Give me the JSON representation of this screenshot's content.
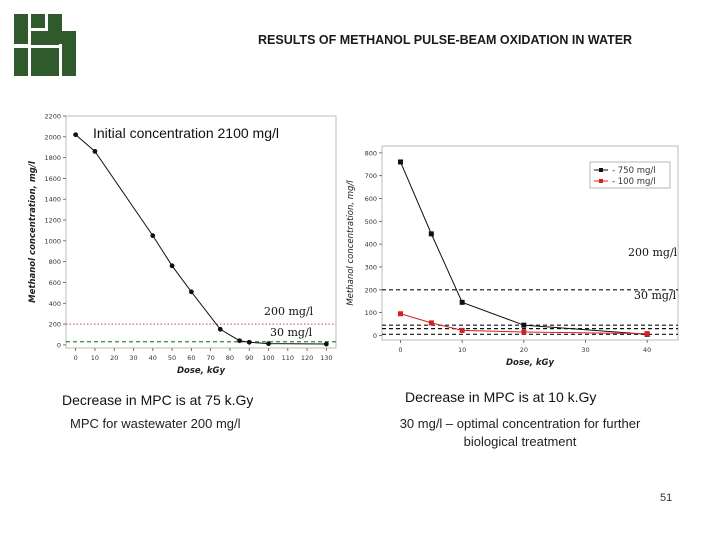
{
  "page": {
    "title": "RESULTS OF METHANOL PULSE-BEAM OXIDATION IN WATER",
    "page_number": "51"
  },
  "left_panel": {
    "initial_label": "Initial concentration 2100 mg/l",
    "line_200_label": "200 mg/l",
    "line_30_label": "30 mg/l",
    "heading": "Decrease in MPC is at 75 k.Gy",
    "note": "MPC for wastewater 200 mg/l"
  },
  "right_panel": {
    "line_200_label": "200 mg/l",
    "line_30_label": "30 mg/l",
    "heading": "Decrease in MPC is at 10 k.Gy",
    "note": "30 mg/l – optimal concentration for further biological treatment"
  },
  "colors": {
    "logo": "#2f5a2c",
    "black_series": "#111111",
    "red_series": "#d62020",
    "red_ref": "#e04040",
    "green_ref": "#2e8b3a"
  },
  "chart_data": [
    {
      "type": "line",
      "title": "",
      "xlabel": "Dose, kGy",
      "ylabel": "Methanol concentration, mg/l",
      "xlim": [
        -5,
        135
      ],
      "ylim": [
        -30,
        2200
      ],
      "xticks": [
        0,
        10,
        20,
        30,
        40,
        50,
        60,
        70,
        80,
        90,
        100,
        110,
        120,
        130
      ],
      "yticks": [
        0,
        200,
        400,
        600,
        800,
        1000,
        1200,
        1400,
        1600,
        1800,
        2000,
        2200
      ],
      "series": [
        {
          "name": "Methanol",
          "color": "#111111",
          "x": [
            0,
            10,
            40,
            50,
            60,
            75,
            85,
            90,
            100,
            130
          ],
          "y": [
            2020,
            1860,
            1050,
            760,
            510,
            150,
            40,
            25,
            12,
            8
          ]
        }
      ],
      "reference_lines": [
        {
          "name": "200 mg/l",
          "y": 200,
          "color": "#e04040",
          "style": "dotted"
        },
        {
          "name": "30 mg/l",
          "y": 30,
          "color": "#2e8b3a",
          "style": "dashed"
        }
      ]
    },
    {
      "type": "line",
      "title": "",
      "xlabel": "Dose, kGy",
      "ylabel": "Methanol concentration, mg/l",
      "xlim": [
        -3,
        45
      ],
      "ylim": [
        -20,
        830
      ],
      "xticks": [
        0,
        10,
        20,
        30,
        40
      ],
      "yticks": [
        0,
        100,
        200,
        300,
        400,
        500,
        600,
        700,
        800
      ],
      "legend": "top-right",
      "series": [
        {
          "name": "750 mg/l",
          "color": "#111111",
          "x": [
            0,
            5,
            10,
            20,
            40
          ],
          "y": [
            760,
            445,
            145,
            45,
            5
          ]
        },
        {
          "name": "100 mg/l",
          "color": "#d62020",
          "x": [
            0,
            5,
            10,
            20,
            40
          ],
          "y": [
            95,
            55,
            22,
            15,
            8
          ]
        }
      ],
      "reference_lines": [
        {
          "name": "200 mg/l",
          "y": 200,
          "color": "#111111",
          "style": "dashed"
        },
        {
          "name": "30 mg/l",
          "y": 30,
          "color": "#111111",
          "style": "dashed"
        },
        {
          "name": "",
          "y": 45,
          "color": "#111111",
          "style": "dashed"
        },
        {
          "name": "",
          "y": 5,
          "color": "#111111",
          "style": "dashed"
        }
      ]
    }
  ]
}
